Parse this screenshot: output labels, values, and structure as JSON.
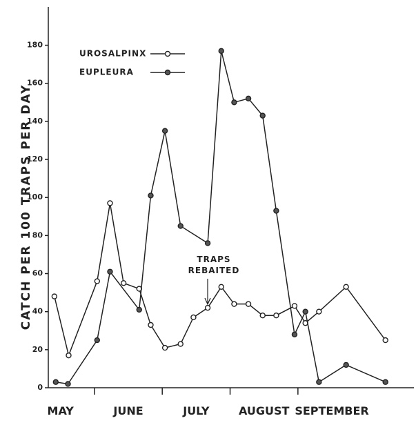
{
  "chart_data": {
    "type": "line",
    "y_label": "CATCH PER 100 TRAPS PER DAY",
    "categories": [
      "MAY",
      "JUNE",
      "JULY",
      "AUGUST",
      "SEPTEMBER"
    ],
    "annotation": [
      "TRAPS",
      "REBAITED"
    ],
    "xlim": [
      0.32,
      5.71
    ],
    "ylim": [
      0,
      190
    ],
    "yticks": [
      0,
      20,
      40,
      60,
      80,
      100,
      120,
      140,
      160,
      180
    ],
    "series": [
      {
        "name": "UROSALPINX",
        "color": "#222",
        "marker_fill": "#ffffff",
        "x": [
          0.41,
          0.62,
          1.04,
          1.23,
          1.43,
          1.66,
          1.83,
          2.04,
          2.27,
          2.46,
          2.67,
          2.87,
          3.06,
          3.27,
          3.48,
          3.68,
          3.95,
          4.11,
          4.31,
          4.71,
          5.29
        ],
        "values": [
          48,
          17,
          56,
          97,
          55,
          52,
          33,
          21,
          23,
          37,
          42,
          53,
          44,
          44,
          38,
          38,
          43,
          34,
          40,
          53,
          25
        ]
      },
      {
        "name": "EUPLEURA",
        "color": "#222",
        "marker_fill": "#555555",
        "x": [
          0.43,
          0.61,
          1.04,
          1.23,
          1.66,
          1.83,
          2.04,
          2.27,
          2.67,
          2.87,
          3.06,
          3.27,
          3.48,
          3.68,
          3.95,
          4.11,
          4.31,
          4.71,
          5.29
        ],
        "values": [
          3,
          2,
          25,
          61,
          41,
          101,
          135,
          85,
          76,
          177,
          150,
          152,
          143,
          93,
          28,
          40,
          3,
          12,
          3
        ]
      }
    ]
  }
}
